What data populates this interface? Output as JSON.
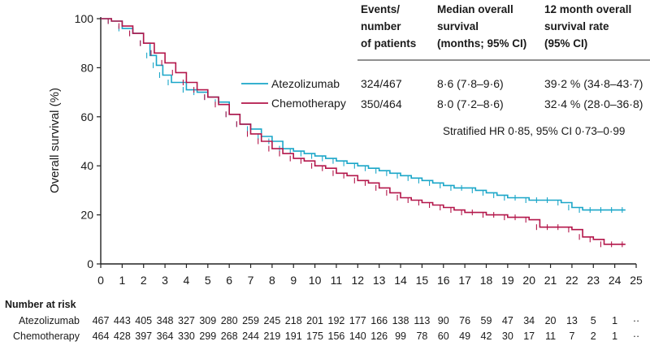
{
  "chart_data": {
    "type": "line",
    "subtype": "kaplan-meier",
    "xlabel": "",
    "ylabel": "Overall survival (%)",
    "xlim": [
      0,
      25
    ],
    "ylim": [
      0,
      100
    ],
    "x_ticks": [
      0,
      1,
      2,
      3,
      4,
      5,
      6,
      7,
      8,
      9,
      10,
      11,
      12,
      13,
      14,
      15,
      16,
      17,
      18,
      19,
      20,
      21,
      22,
      23,
      24,
      25
    ],
    "y_ticks": [
      0,
      20,
      40,
      60,
      80,
      100
    ],
    "grid": false,
    "legend_position": "top-right",
    "table": {
      "headers": [
        "Events/\nnumber\nof patients",
        "Median overall\nsurvival\n(months; 95% CI)",
        "12 month overall\nsurvival rate\n(95% CI)"
      ],
      "header_lines": [
        [
          "Events/",
          "number",
          "of patients"
        ],
        [
          "Median overall",
          "survival",
          "(months; 95% CI)"
        ],
        [
          "12 month overall",
          "survival rate",
          "(95% CI)"
        ]
      ],
      "rows": [
        {
          "name": "Atezolizumab",
          "events": "324/467",
          "median": "8·6 (7·8–9·6)",
          "rate": "39·2 % (34·8–43·7)"
        },
        {
          "name": "Chemotherapy",
          "events": "350/464",
          "median": "8·0 (7·2–8·6)",
          "rate": "32·4 % (28·0–36·8)"
        }
      ]
    },
    "hazard_ratio": "Stratified HR 0·85, 95% CI 0·73–0·99",
    "series": [
      {
        "name": "Atezolizumab",
        "color": "#1aa6c8",
        "x": [
          0,
          0.5,
          1,
          1.5,
          2,
          2.3,
          2.6,
          2.9,
          3.3,
          4,
          4.5,
          5,
          5.5,
          6,
          6.5,
          7,
          7.5,
          8,
          8.5,
          9,
          9.5,
          10,
          10.5,
          11,
          11.5,
          12,
          12.5,
          13,
          13.5,
          14,
          14.5,
          15,
          15.5,
          16,
          16.5,
          17,
          17.5,
          18,
          18.5,
          19,
          19.5,
          20,
          20.5,
          21,
          21.5,
          22,
          22.5,
          23,
          23.5,
          24,
          24.5
        ],
        "y": [
          100,
          99,
          96,
          94,
          90,
          85,
          81,
          77,
          74,
          71,
          70,
          68,
          66,
          61,
          57,
          55,
          52,
          50,
          47,
          46,
          45,
          44,
          43,
          42,
          41,
          40,
          39,
          38,
          37,
          36,
          35,
          34,
          33,
          32,
          31,
          31,
          30,
          29,
          28,
          27,
          27,
          26,
          26,
          26,
          25,
          23,
          22,
          22,
          22,
          22,
          22
        ]
      },
      {
        "name": "Chemotherapy",
        "color": "#b3164a",
        "x": [
          0,
          0.5,
          1,
          1.5,
          2,
          2.5,
          3,
          3.5,
          4,
          4.5,
          5,
          5.5,
          6,
          6.5,
          7,
          7.5,
          8,
          8.5,
          9,
          9.5,
          10,
          10.5,
          11,
          11.5,
          12,
          12.5,
          13,
          13.5,
          14,
          14.5,
          15,
          15.5,
          16,
          16.5,
          17,
          17.5,
          18,
          18.5,
          19,
          19.5,
          20,
          20.5,
          21,
          21.5,
          22,
          22.5,
          23,
          23.5,
          24,
          24.5
        ],
        "y": [
          100,
          99,
          97,
          94,
          90,
          86,
          82,
          78,
          74,
          71,
          68,
          65,
          61,
          57,
          53,
          50,
          47,
          45,
          43,
          42,
          40,
          39,
          37,
          36,
          34,
          33,
          31,
          29,
          27,
          26,
          25,
          24,
          23,
          22,
          21,
          21,
          20,
          20,
          19,
          19,
          18,
          15,
          15,
          15,
          14,
          11,
          10,
          8,
          8,
          8
        ]
      }
    ],
    "numbers_at_risk": {
      "title": "Number at risk",
      "times": [
        0,
        1,
        2,
        3,
        4,
        5,
        6,
        7,
        8,
        9,
        10,
        11,
        12,
        13,
        14,
        15,
        16,
        17,
        18,
        19,
        20,
        21,
        22,
        23,
        24,
        25
      ],
      "rows": [
        {
          "name": "Atezolizumab",
          "values": [
            "467",
            "443",
            "405",
            "348",
            "327",
            "309",
            "280",
            "259",
            "245",
            "218",
            "201",
            "192",
            "177",
            "166",
            "138",
            "113",
            "90",
            "76",
            "59",
            "47",
            "34",
            "20",
            "13",
            "5",
            "1",
            "··"
          ]
        },
        {
          "name": "Chemotherapy",
          "values": [
            "464",
            "428",
            "397",
            "364",
            "330",
            "299",
            "268",
            "244",
            "219",
            "191",
            "175",
            "156",
            "140",
            "126",
            "99",
            "78",
            "60",
            "49",
            "42",
            "30",
            "17",
            "11",
            "7",
            "2",
            "1",
            "··"
          ]
        }
      ]
    }
  }
}
